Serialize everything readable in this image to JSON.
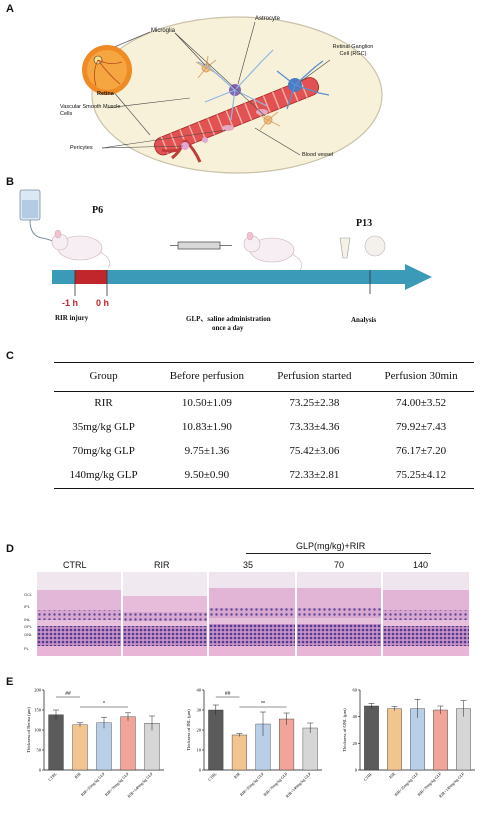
{
  "panels": {
    "a": "A",
    "b": "B",
    "c": "C",
    "d": "D",
    "e": "E"
  },
  "panel_a": {
    "labels": {
      "microglia": "Microglia",
      "astrocyte": "Astrocyte",
      "rgc": "Retinal Ganglion Cell (RGC)",
      "retina": "Retina",
      "vsmc": "Vascular Smooth Muscle Cells",
      "pericytes": "Pericytes",
      "blood_vessel": "Blood vessel"
    }
  },
  "panel_b": {
    "p6": "P6",
    "p13": "P13",
    "minus1": "-1 h",
    "zero": "0 h",
    "rir": "RIR injury",
    "glp_line1": "GLP、saline administration",
    "glp_line2": "once a day",
    "analysis": "Analysis"
  },
  "panel_c": {
    "headers": [
      "Group",
      "Before perfusion",
      "Perfusion started",
      "Perfusion 30min"
    ],
    "rows": [
      [
        "RIR",
        "10.50±1.09",
        "73.25±2.38",
        "74.00±3.52"
      ],
      [
        "35mg/kg GLP",
        "10.83±1.90",
        "73.33±4.36",
        "79.92±7.43"
      ],
      [
        "70mg/kg GLP",
        "9.75±1.36",
        "75.42±3.06",
        "76.17±7.20"
      ],
      [
        "140mg/kg GLP",
        "9.50±0.90",
        "72.33±2.81",
        "75.25±4.12"
      ]
    ]
  },
  "panel_d": {
    "group_header": "GLP(mg/kg)+RIR",
    "columns": [
      "CTRL",
      "RIR",
      "35",
      "70",
      "140"
    ],
    "layers": [
      "GCL",
      "IPL",
      "INL",
      "OPL",
      "ONL",
      "PL"
    ]
  },
  "chart_data": [
    {
      "type": "bar",
      "title": "",
      "ylabel": "Thickness of Retina (μm)",
      "ylim": [
        0,
        200
      ],
      "yticks": [
        "0",
        "50",
        "100",
        "150",
        "200"
      ],
      "categories": [
        "CTRL",
        "RIR",
        "RIR+35mg/kg GLP",
        "RIR+70mg/kg GLP",
        "RIR+140mg/kg GLP"
      ],
      "values": [
        138,
        113,
        118,
        133,
        117
      ],
      "errors": [
        12,
        5,
        14,
        10,
        18
      ],
      "colors": [
        "#5b5b5b",
        "#f2c48f",
        "#b9cfe8",
        "#f1a49a",
        "#d6d6d6"
      ],
      "significance": [
        "##",
        "*"
      ]
    },
    {
      "type": "bar",
      "title": "",
      "ylabel": "Thickness of INL (μm)",
      "ylim": [
        0,
        40
      ],
      "yticks": [
        "0",
        "10",
        "20",
        "30",
        "40"
      ],
      "categories": [
        "CTRL",
        "RIR",
        "RIR+35mg/kg GLP",
        "RIR+70mg/kg GLP",
        "RIR+140mg/kg GLP"
      ],
      "values": [
        30,
        17.5,
        23,
        25.5,
        21
      ],
      "errors": [
        2.5,
        0.8,
        6,
        3,
        2.5
      ],
      "colors": [
        "#5b5b5b",
        "#f2c48f",
        "#b9cfe8",
        "#f1a49a",
        "#d6d6d6"
      ],
      "significance": [
        "##",
        "**"
      ]
    },
    {
      "type": "bar",
      "title": "",
      "ylabel": "Thickness of ONL (μm)",
      "ylim": [
        0,
        60
      ],
      "yticks": [
        "0",
        "20",
        "40",
        "60"
      ],
      "categories": [
        "CTRL",
        "RIR",
        "RIR+35mg/kg GLP",
        "RIR+70mg/kg GLP",
        "RIR+140mg/kg GLP"
      ],
      "values": [
        48,
        46,
        46,
        45,
        46
      ],
      "errors": [
        2,
        1.5,
        7,
        3,
        6
      ],
      "colors": [
        "#5b5b5b",
        "#f2c48f",
        "#b9cfe8",
        "#f1a49a",
        "#d6d6d6"
      ],
      "significance": []
    }
  ]
}
